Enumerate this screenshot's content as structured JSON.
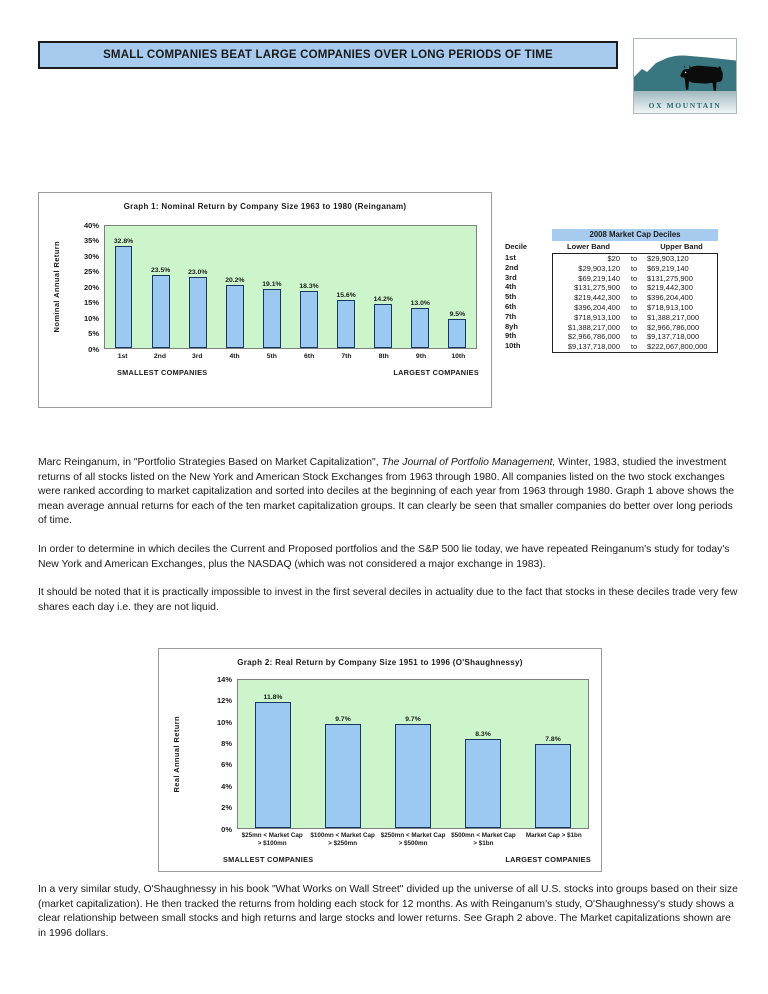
{
  "header": {
    "title": "SMALL COMPANIES BEAT LARGE COMPANIES OVER LONG PERIODS OF TIME",
    "logo_text": "OX MOUNTAIN"
  },
  "chart_data": [
    {
      "type": "bar",
      "title": "Graph 1: Nominal Return by Company Size 1963 to 1980 (Reinganam)",
      "ylabel": "Nominal Annual Return",
      "categories": [
        "1st",
        "2nd",
        "3rd",
        "4th",
        "5th",
        "6th",
        "7th",
        "8th",
        "9th",
        "10th"
      ],
      "values": [
        32.8,
        23.5,
        23.0,
        20.2,
        19.1,
        18.3,
        15.6,
        14.2,
        13.0,
        9.5
      ],
      "bar_labels": [
        "32.8%",
        "23.5%",
        "23.0%",
        "20.2%",
        "19.1%",
        "18.3%",
        "15.6%",
        "14.2%",
        "13.0%",
        "9.5%"
      ],
      "ylim": [
        0,
        40
      ],
      "ytick_step": 5,
      "ytick_suffix": "%",
      "grid": false,
      "footer_left": "SMALLEST COMPANIES",
      "footer_right": "LARGEST COMPANIES"
    },
    {
      "type": "bar",
      "title": "Graph 2: Real Return by Company Size 1951 to 1996 (O'Shaughnessy)",
      "ylabel": "Real Annual Return",
      "categories": [
        "$25mn < Market Cap > $100mn",
        "$100mn < Market Cap > $250mn",
        "$250mn < Market Cap > $500mn",
        "$500mn < Market Cap > $1bn",
        "Market Cap > $1bn"
      ],
      "values": [
        11.8,
        9.7,
        9.7,
        8.3,
        7.8
      ],
      "bar_labels": [
        "11.8%",
        "9.7%",
        "9.7%",
        "8.3%",
        "7.8%"
      ],
      "ylim": [
        0,
        14
      ],
      "ytick_step": 2,
      "ytick_suffix": "%",
      "grid": false,
      "footer_left": "SMALLEST COMPANIES",
      "footer_right": "LARGEST COMPANIES"
    }
  ],
  "decile_table": {
    "title": "2008 Market Cap Deciles",
    "columns": {
      "decile": "Decile",
      "lower": "Lower Band",
      "to": "to",
      "upper": "Upper Band"
    },
    "rows": [
      {
        "decile": "1st",
        "lower": "$20",
        "upper": "$29,903,120"
      },
      {
        "decile": "2nd",
        "lower": "$29,903,120",
        "upper": "$69,219,140"
      },
      {
        "decile": "3rd",
        "lower": "$69,219,140",
        "upper": "$131,275,900"
      },
      {
        "decile": "4th",
        "lower": "$131,275,900",
        "upper": "$219,442,300"
      },
      {
        "decile": "5th",
        "lower": "$219,442,300",
        "upper": "$396,204,400"
      },
      {
        "decile": "6th",
        "lower": "$396,204,400",
        "upper": "$718,913,100"
      },
      {
        "decile": "7th",
        "lower": "$718,913,100",
        "upper": "$1,388,217,000"
      },
      {
        "decile": "8yh",
        "lower": "$1,388,217,000",
        "upper": "$2,966,786,000"
      },
      {
        "decile": "9th",
        "lower": "$2,966,786,000",
        "upper": "$9,137,718,000"
      },
      {
        "decile": "10th",
        "lower": "$9,137,718,000",
        "upper": "$222,067,800,000"
      }
    ]
  },
  "paragraphs": {
    "p1_pre": "Marc Reinganum, in \"Portfolio Strategies Based on Market Capitalization\", ",
    "p1_italic": "The Journal of Portfolio Management,",
    "p1_post": " Winter, 1983, studied the investment returns of all stocks listed on the New York and American Stock Exchanges from 1963 through 1980. All companies listed on the two stock exchanges were ranked according to market capitalization and sorted into deciles at the beginning of each year from 1963 through 1980. Graph 1 above shows the mean average annual returns for each of the ten market capitalization groups. It can clearly be seen that smaller companies do better over long periods of time.",
    "p2": "In order to determine in which deciles the Current and Proposed portfolios and the S&P 500 lie today, we have repeated Reinganum's study for today's New York and American Exchanges, plus the NASDAQ (which was not considered a major exchange in 1983).",
    "p3": "It should be noted that it is practically impossible to invest in the first several deciles in actuality due to the fact that stocks in these deciles trade very few shares each day i.e. they are not liquid.",
    "p4": "In a very similar study, O'Shaughnessy in his book \"What Works on Wall Street\" divided up the universe of all U.S. stocks into groups based on their size (market capitalization). He then tracked the returns from holding each stock for 12 months. As with Reinganum's study, O'Shaughnessy's study shows a clear relationship between small stocks and high returns and large stocks and lower returns. See Graph 2 above. The Market capitalizations shown are in 1996 dollars."
  },
  "colors": {
    "header_blue": "#A7CBEF",
    "plot_green": "#CCF5CC",
    "bar_fill": "#9CC9F2",
    "bar_border": "#17375E",
    "logo_teal": "#3A7680"
  }
}
